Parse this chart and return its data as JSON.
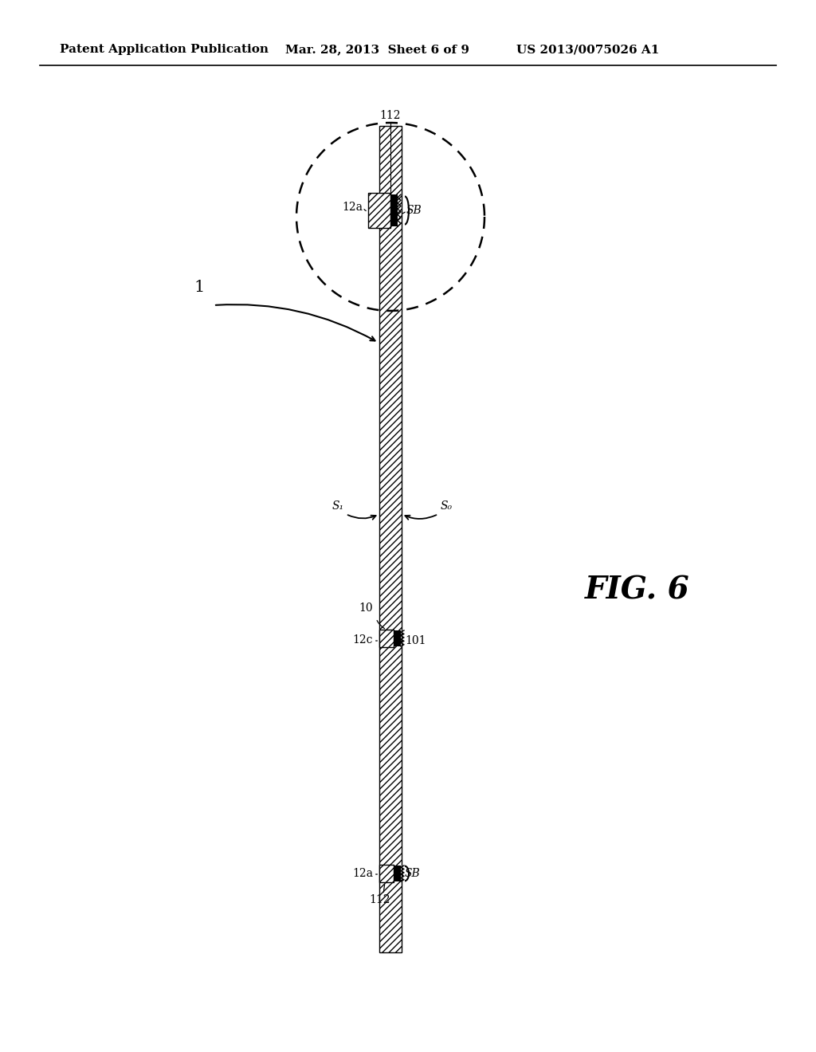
{
  "bg_color": "#ffffff",
  "header_left": "Patent Application Publication",
  "header_mid": "Mar. 28, 2013  Sheet 6 of 9",
  "header_right": "US 2013/0075026 A1",
  "fig_label": "FIG. 6"
}
